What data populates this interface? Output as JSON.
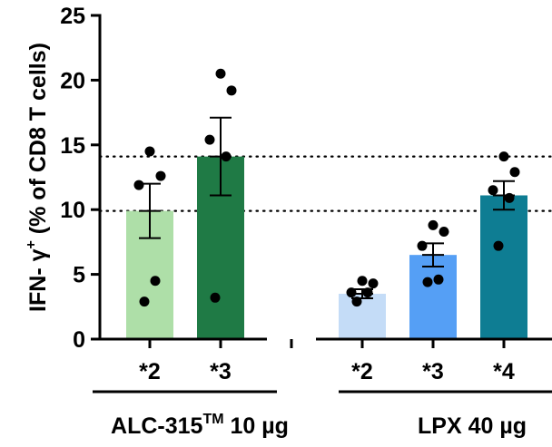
{
  "chart_data": {
    "type": "bar",
    "ylabel_main": "IFN- γ",
    "ylabel_sup": "+",
    "ylabel_rest": " (% of CD8 T cells)",
    "ylim": [
      0,
      25
    ],
    "yticks": [
      0,
      5,
      10,
      15,
      20,
      25
    ],
    "reference_lines": [
      9.9,
      14.1
    ],
    "groups": [
      {
        "label_main": "ALC-315",
        "label_sup": "TM",
        "label_rest": " 10 µg",
        "bars": [
          0,
          1
        ]
      },
      {
        "label_main": "LPX 40 µg",
        "label_sup": "",
        "label_rest": "",
        "bars": [
          2,
          3,
          4
        ]
      }
    ],
    "bars": [
      {
        "label": "*2",
        "slot": 0,
        "mean": 9.9,
        "sem": 2.1,
        "color": "#aedfa8",
        "points": [
          14.5,
          12.6,
          11.9,
          4.5,
          2.9
        ]
      },
      {
        "label": "*3",
        "slot": 1,
        "mean": 14.1,
        "sem": 3.0,
        "color": "#1f7a45",
        "points": [
          20.5,
          19.2,
          15.4,
          14.1,
          3.2
        ]
      },
      {
        "label": "*2",
        "slot": 3,
        "mean": 3.5,
        "sem": 0.35,
        "color": "#c4dcf7",
        "points": [
          4.5,
          4.3,
          3.6,
          3.6,
          2.9
        ]
      },
      {
        "label": "*3",
        "slot": 4,
        "mean": 6.5,
        "sem": 0.9,
        "color": "#559ff5",
        "points": [
          8.8,
          8.3,
          7.2,
          4.6,
          4.4
        ]
      },
      {
        "label": "*4",
        "slot": 5,
        "mean": 11.1,
        "sem": 1.1,
        "color": "#0e7d93",
        "points": [
          14.1,
          12.9,
          11.5,
          10.9,
          7.2
        ]
      }
    ]
  }
}
